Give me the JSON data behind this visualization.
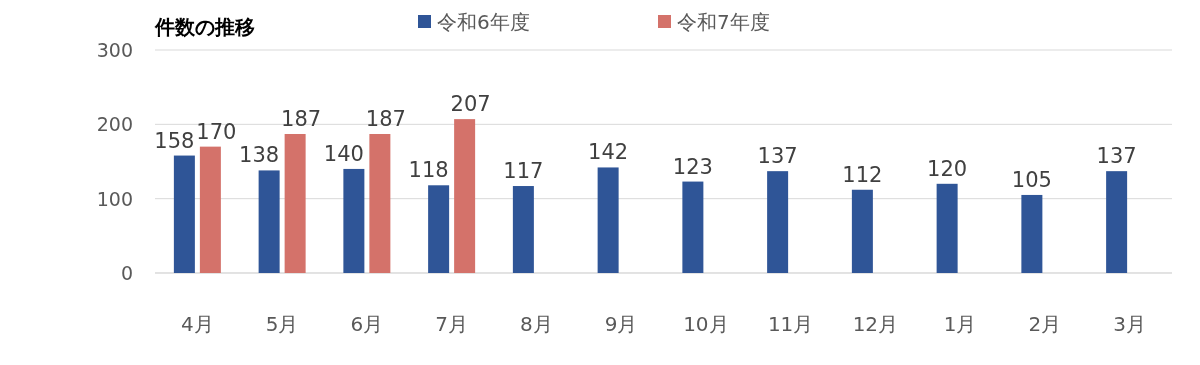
{
  "chart_data": {
    "type": "bar",
    "title": "件数の推移",
    "categories": [
      "4月",
      "5月",
      "6月",
      "7月",
      "8月",
      "9月",
      "10月",
      "11月",
      "12月",
      "1月",
      "2月",
      "3月"
    ],
    "series": [
      {
        "name": "令和6年度",
        "color": "#2f5597",
        "values": [
          158,
          138,
          140,
          118,
          117,
          142,
          123,
          137,
          112,
          120,
          105,
          137
        ]
      },
      {
        "name": "令和7年度",
        "color": "#d4726a",
        "values": [
          170,
          187,
          187,
          207,
          null,
          null,
          null,
          null,
          null,
          null,
          null,
          null
        ]
      }
    ],
    "ylim": [
      0,
      300
    ],
    "yticks": [
      0,
      100,
      200,
      300
    ],
    "grid": "y",
    "legend": "top",
    "data_labels": true
  }
}
